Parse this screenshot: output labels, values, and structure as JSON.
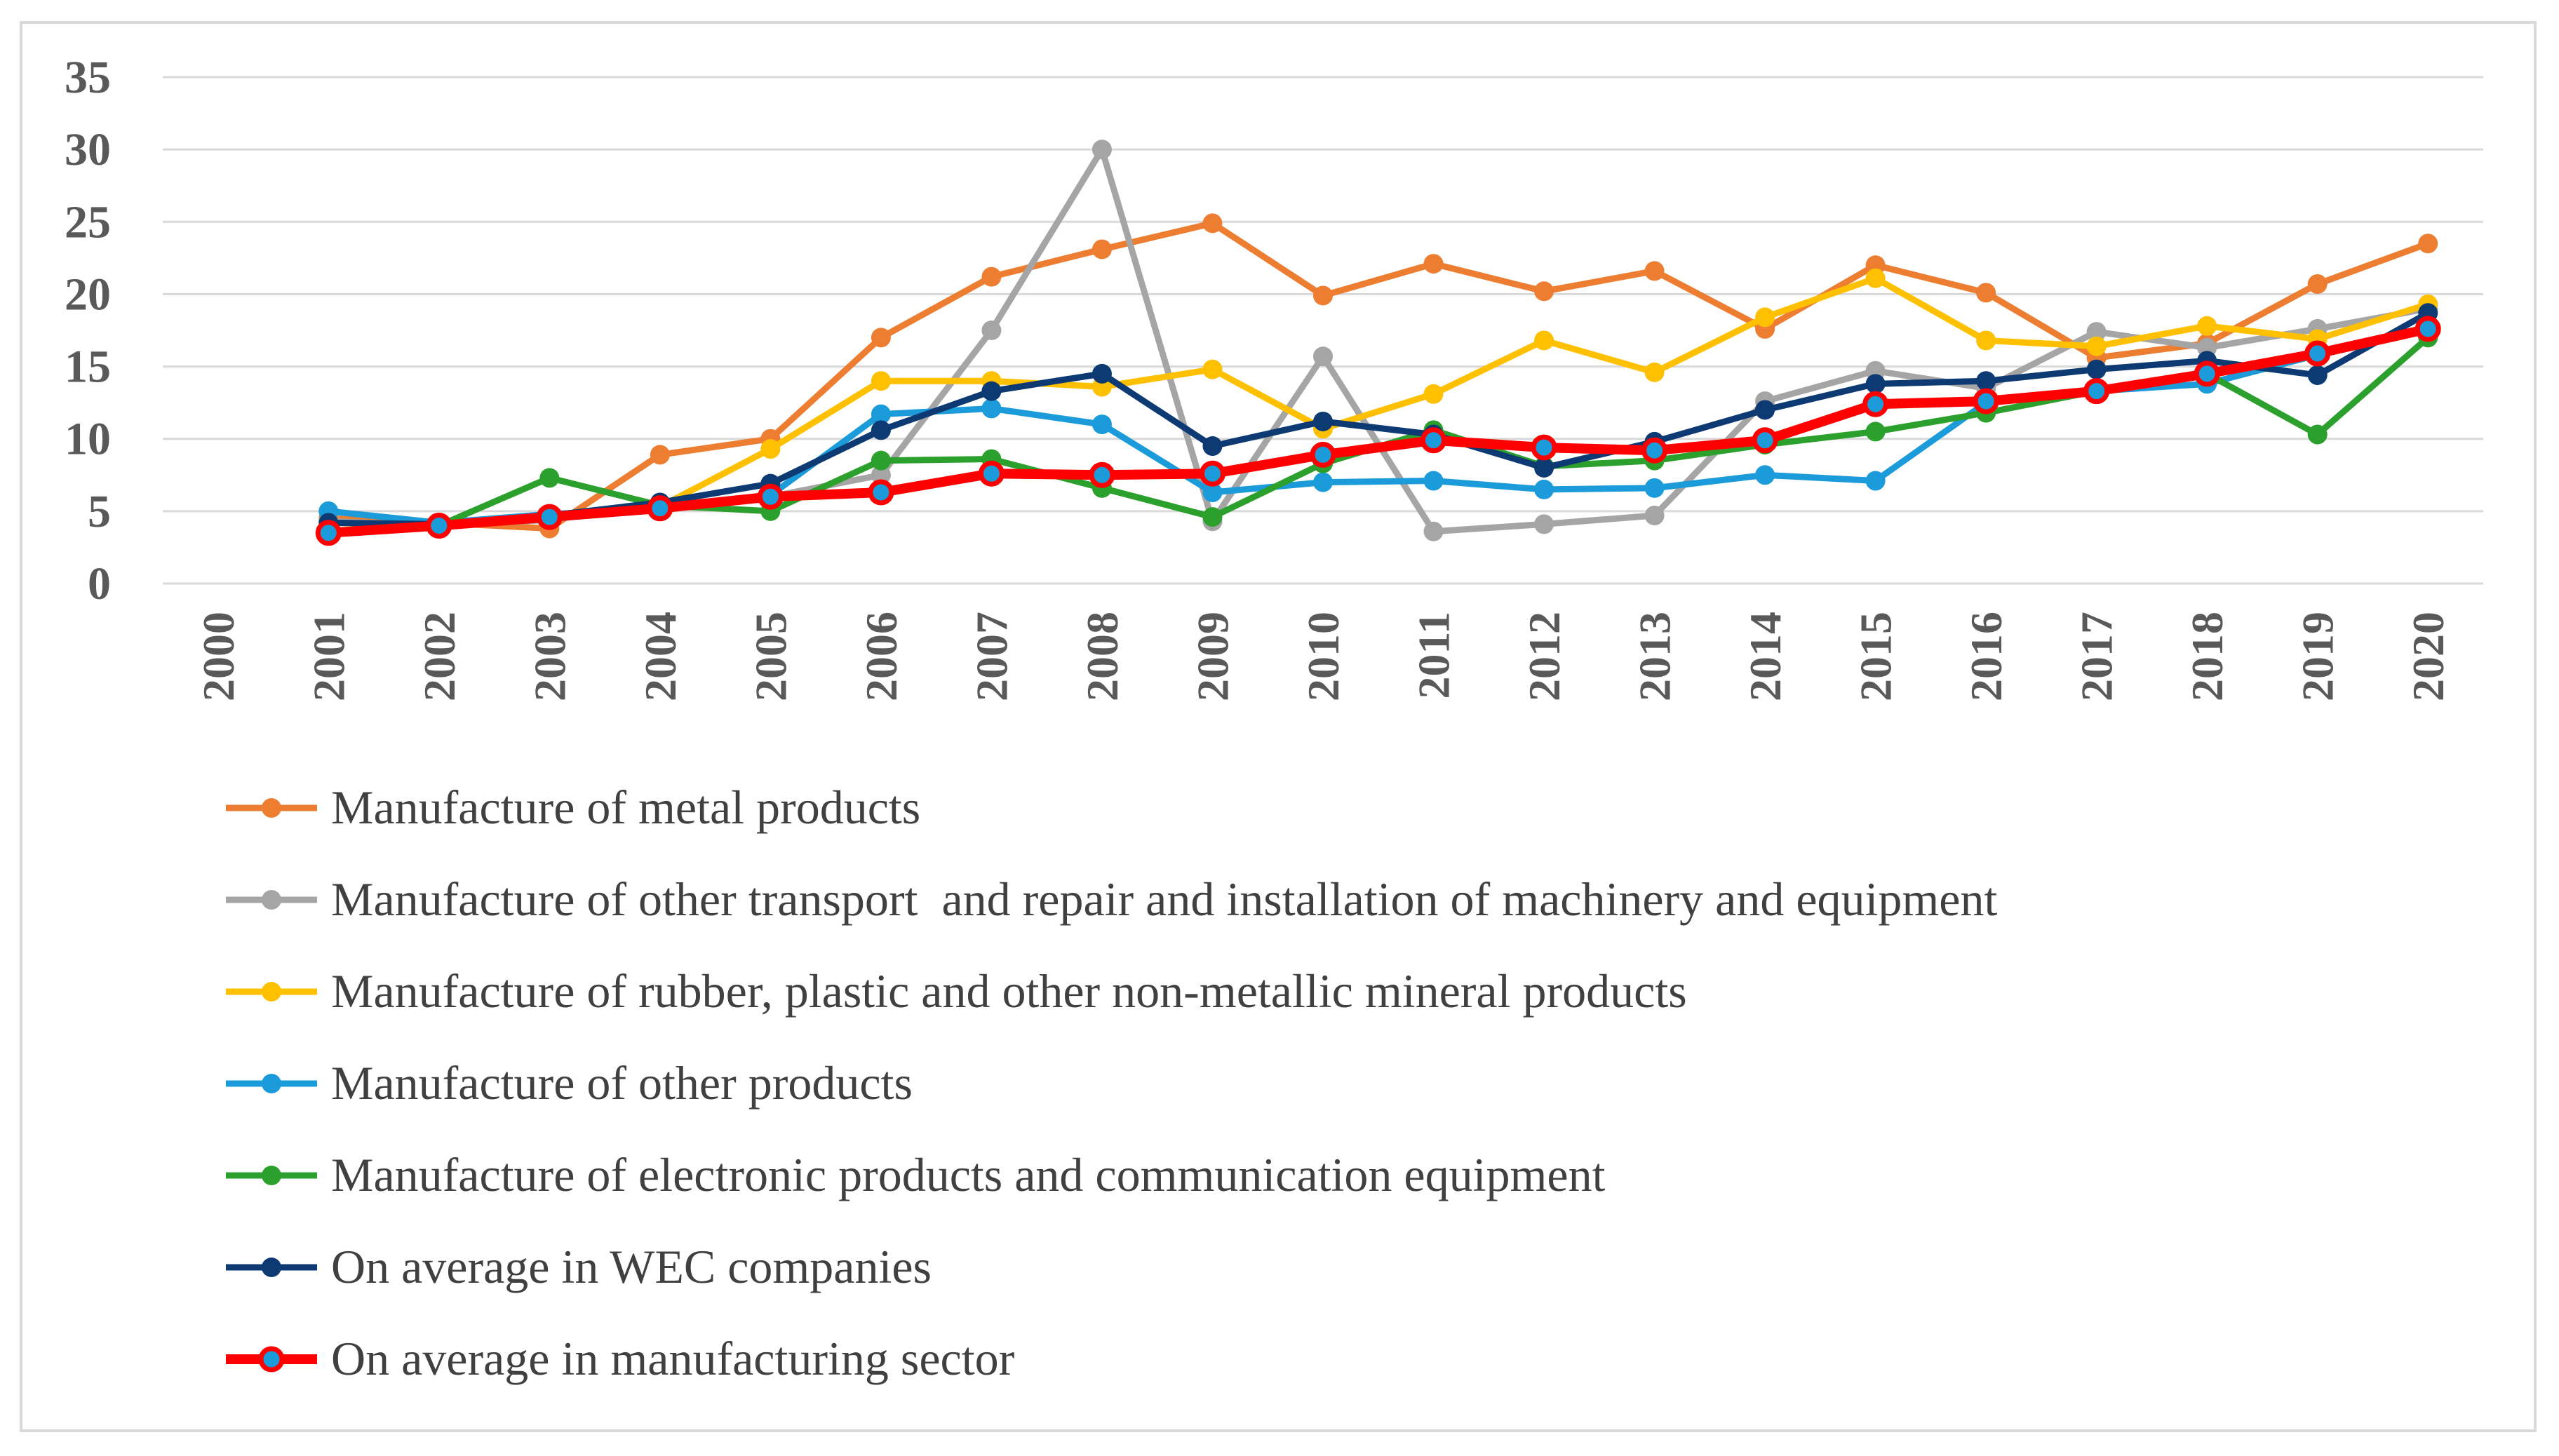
{
  "chart_data": {
    "type": "line",
    "title": "",
    "xlabel": "",
    "ylabel": "",
    "ylim": [
      0,
      35
    ],
    "yticks": [
      "0",
      "5",
      "10",
      "15",
      "20",
      "25",
      "30",
      "35"
    ],
    "x": [
      "2000",
      "2001",
      "2002",
      "2003",
      "2004",
      "2005",
      "2006",
      "2007",
      "2008",
      "2009",
      "2010",
      "2011",
      "2012",
      "2013",
      "2014",
      "2015",
      "2016",
      "2017",
      "2018",
      "2019",
      "2020"
    ],
    "grid": true,
    "legend_position": "bottom",
    "series": [
      {
        "name": "Manufacture of metal products",
        "color": "#ED7D31",
        "values": [
          null,
          4.5,
          4.2,
          3.8,
          8.9,
          10.0,
          17.0,
          21.2,
          23.1,
          24.9,
          19.9,
          22.1,
          20.2,
          21.6,
          17.6,
          22.0,
          20.1,
          15.6,
          16.6,
          20.7,
          23.5
        ]
      },
      {
        "name": "Manufacture of other transport  and repair and installation of machinery and equipment",
        "color": "#A5A5A5",
        "values": [
          null,
          4.3,
          4.0,
          4.4,
          5.4,
          6.0,
          7.5,
          17.5,
          30.0,
          4.3,
          15.7,
          3.6,
          4.1,
          4.7,
          12.6,
          14.7,
          13.5,
          17.4,
          16.3,
          17.6,
          19.0
        ]
      },
      {
        "name": "Manufacture of rubber, plastic and other non-metallic mineral products",
        "color": "#FFC000",
        "values": [
          null,
          4.2,
          4.0,
          4.6,
          5.3,
          9.3,
          14.0,
          14.0,
          13.6,
          14.8,
          10.7,
          13.1,
          16.8,
          14.6,
          18.4,
          21.1,
          16.8,
          16.4,
          17.8,
          16.9,
          19.3
        ]
      },
      {
        "name": "Manufacture of other products",
        "color": "#1C9BDB",
        "values": [
          null,
          5.0,
          4.2,
          4.8,
          5.1,
          6.1,
          11.7,
          12.1,
          11.0,
          6.3,
          7.0,
          7.1,
          6.5,
          6.6,
          7.5,
          7.1,
          12.5,
          13.3,
          13.8,
          15.8,
          17.6
        ]
      },
      {
        "name": "Manufacture of electronic products and communication equipment",
        "color": "#2CA02C",
        "values": [
          null,
          3.6,
          4.0,
          7.3,
          5.4,
          5.0,
          8.5,
          8.6,
          6.6,
          4.6,
          8.3,
          10.6,
          8.1,
          8.5,
          9.6,
          10.5,
          11.8,
          13.3,
          14.5,
          10.3,
          17.0
        ]
      },
      {
        "name": "On average in WEC companies",
        "color": "#0D3A73",
        "values": [
          null,
          4.2,
          4.1,
          4.7,
          5.6,
          6.9,
          10.6,
          13.3,
          14.5,
          9.5,
          11.2,
          10.3,
          8.0,
          9.8,
          12.0,
          13.8,
          14.0,
          14.8,
          15.4,
          14.4,
          18.7
        ]
      },
      {
        "name": "On average in manufacturing sector",
        "color": "#FF0000",
        "values": [
          null,
          3.5,
          4.0,
          4.6,
          5.2,
          6.0,
          6.3,
          7.6,
          7.5,
          7.6,
          8.9,
          9.9,
          9.4,
          9.2,
          9.9,
          12.4,
          12.6,
          13.3,
          14.5,
          15.9,
          17.6
        ]
      }
    ]
  }
}
